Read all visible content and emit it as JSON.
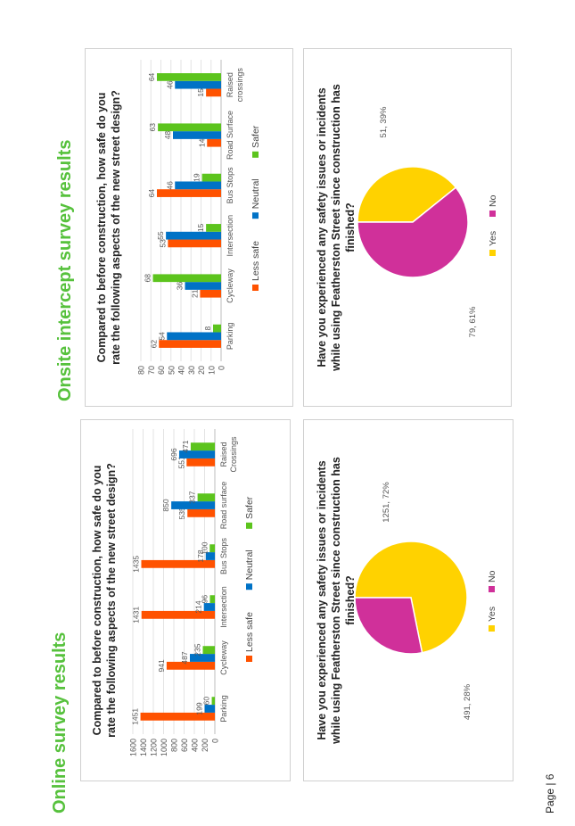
{
  "page": {
    "label": "Page | 6"
  },
  "online": {
    "heading": "Online survey results",
    "bar_title": "Compared to before construction, how safe do you rate the following aspects of the new street design?",
    "pie_title": "Have you experienced any safety issues or incidents while using Featherston Street since construction has finished?"
  },
  "onsite": {
    "heading": "Onsite intercept survey results",
    "bar_title": "Compared to before construction, how safe do you rate the following aspects of the new street design?",
    "pie_title": "Have you experienced any safety issues or incidents while using Featherston Street since construction has finished?"
  },
  "colors": {
    "less_safe": "#ff5200",
    "neutral": "#0072c6",
    "safer": "#5cc41d",
    "yes": "#ffd200",
    "no": "#d0309a"
  },
  "chart_data": [
    {
      "type": "bar",
      "title": "Compared to before construction, how safe do you rate the following aspects of the new street design?",
      "categories": [
        "Parking",
        "Cycleway",
        "Intersection",
        "Bus Stops",
        "Road surface",
        "Raised Crossings"
      ],
      "series": [
        {
          "name": "Less safe",
          "values": [
            1451,
            941,
            1431,
            1435,
            535,
            551
          ]
        },
        {
          "name": "Neutral",
          "values": [
            199,
            487,
            214,
            178,
            850,
            696
          ]
        },
        {
          "name": "Safer",
          "values": [
            60,
            235,
            96,
            100,
            337,
            471
          ]
        }
      ],
      "yticks": [
        "0",
        "200",
        "400",
        "600",
        "800",
        "1000",
        "1200",
        "1400",
        "1600"
      ],
      "ylim": [
        0,
        1600
      ],
      "legend": "bottom",
      "grid": true
    },
    {
      "type": "pie",
      "title": "Have you experienced any safety issues or incidents while using Featherston Street since construction has finished?",
      "labels": [
        "Yes",
        "No"
      ],
      "values": [
        1251,
        491
      ],
      "percents": [
        72,
        28
      ],
      "data_labels": [
        "1251, 72%",
        "491, 28%"
      ],
      "legend": "bottom"
    },
    {
      "type": "bar",
      "title": "Compared to before construction, how safe do you rate the following aspects of the new street design?",
      "categories": [
        "Parking",
        "Cycleway",
        "Intersection",
        "Bus Stops",
        "Road Surface",
        "Raised crossings"
      ],
      "series": [
        {
          "name": "Less safe",
          "values": [
            62,
            21,
            53,
            64,
            14,
            15
          ]
        },
        {
          "name": "Neutral",
          "values": [
            54,
            36,
            55,
            46,
            48,
            46
          ]
        },
        {
          "name": "Safer",
          "values": [
            8,
            68,
            15,
            19,
            63,
            64
          ]
        }
      ],
      "yticks": [
        "0",
        "10",
        "20",
        "30",
        "40",
        "50",
        "60",
        "70",
        "80"
      ],
      "ylim": [
        0,
        80
      ],
      "legend": "bottom",
      "grid": true
    },
    {
      "type": "pie",
      "title": "Have you experienced any safety issues or incidents while using Featherston Street since construction has finished?",
      "labels": [
        "Yes",
        "No"
      ],
      "values": [
        51,
        79
      ],
      "percents": [
        39,
        61
      ],
      "data_labels": [
        "51, 39%",
        "79, 61%"
      ],
      "legend": "bottom"
    }
  ]
}
